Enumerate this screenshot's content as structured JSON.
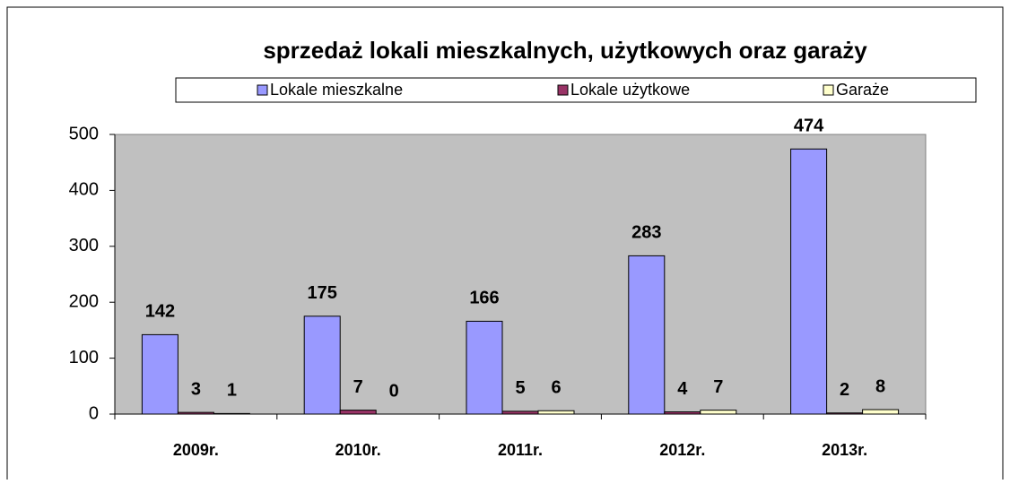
{
  "chart_data": {
    "type": "bar",
    "title": "sprzedaż lokali mieszkalnych, użytkowych  oraz garaży",
    "categories": [
      "2009r.",
      "2010r.",
      "2011r.",
      "2012r.",
      "2013r."
    ],
    "series": [
      {
        "name": "Lokale mieszkalne",
        "color": "#9999ff",
        "values": [
          142,
          175,
          166,
          283,
          474
        ]
      },
      {
        "name": "Lokale użytkowe",
        "color": "#993366",
        "values": [
          3,
          7,
          5,
          4,
          2
        ]
      },
      {
        "name": "Garaże",
        "color": "#ffffcc",
        "values": [
          1,
          0,
          6,
          7,
          8
        ]
      }
    ],
    "ylim": [
      0,
      500
    ],
    "yticks": [
      0,
      100,
      200,
      300,
      400,
      500
    ],
    "legend": "top",
    "plot_background": "#c0c0c0"
  }
}
